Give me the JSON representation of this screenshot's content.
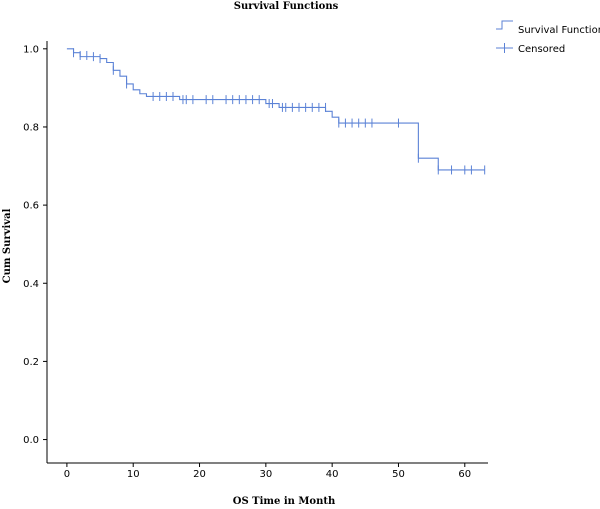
{
  "chart_data": {
    "type": "line",
    "title": "Survival Functions",
    "xlabel": "OS Time in Month",
    "ylabel": "Cum Survival",
    "xlim": [
      -3,
      63.5
    ],
    "ylim": [
      -0.06,
      1.02
    ],
    "xticks": [
      0,
      10,
      20,
      30,
      40,
      50,
      60
    ],
    "yticks": [
      0.0,
      0.2,
      0.4,
      0.6,
      0.8,
      1.0
    ],
    "xtick_labels": [
      "0",
      "10",
      "20",
      "30",
      "40",
      "50",
      "60"
    ],
    "ytick_labels": [
      "0.0",
      "0.2",
      "0.4",
      "0.6",
      "0.8",
      "1.0"
    ],
    "grid": false,
    "legend_position": "top-right",
    "line_color": "#5b82d6",
    "series": [
      {
        "name": "Survival Function",
        "kind": "step",
        "points": [
          [
            0,
            1.0
          ],
          [
            1,
            0.99
          ],
          [
            2,
            0.98
          ],
          [
            5,
            0.975
          ],
          [
            6,
            0.965
          ],
          [
            7,
            0.945
          ],
          [
            8,
            0.93
          ],
          [
            9,
            0.91
          ],
          [
            10,
            0.895
          ],
          [
            11,
            0.885
          ],
          [
            12,
            0.878
          ],
          [
            17,
            0.87
          ],
          [
            30,
            0.86
          ],
          [
            32,
            0.85
          ],
          [
            39,
            0.84
          ],
          [
            40,
            0.825
          ],
          [
            41,
            0.81
          ],
          [
            53,
            0.72
          ],
          [
            56,
            0.69
          ],
          [
            63,
            0.69
          ]
        ]
      },
      {
        "name": "Censored",
        "kind": "censor-marks",
        "points": [
          [
            1,
            0.99
          ],
          [
            2,
            0.983
          ],
          [
            3,
            0.983
          ],
          [
            4,
            0.98
          ],
          [
            5,
            0.975
          ],
          [
            7,
            0.945
          ],
          [
            9,
            0.91
          ],
          [
            13,
            0.878
          ],
          [
            14,
            0.878
          ],
          [
            15,
            0.878
          ],
          [
            16,
            0.878
          ],
          [
            17.5,
            0.87
          ],
          [
            18,
            0.87
          ],
          [
            19,
            0.87
          ],
          [
            21,
            0.87
          ],
          [
            22,
            0.87
          ],
          [
            24,
            0.87
          ],
          [
            25,
            0.87
          ],
          [
            26,
            0.87
          ],
          [
            27,
            0.87
          ],
          [
            28,
            0.87
          ],
          [
            29,
            0.87
          ],
          [
            30.5,
            0.86
          ],
          [
            31,
            0.86
          ],
          [
            32.5,
            0.85
          ],
          [
            33,
            0.85
          ],
          [
            34,
            0.85
          ],
          [
            35,
            0.85
          ],
          [
            36,
            0.85
          ],
          [
            37,
            0.85
          ],
          [
            38,
            0.85
          ],
          [
            39,
            0.85
          ],
          [
            41,
            0.81
          ],
          [
            42,
            0.81
          ],
          [
            43,
            0.81
          ],
          [
            44,
            0.81
          ],
          [
            45,
            0.81
          ],
          [
            46,
            0.81
          ],
          [
            50,
            0.81
          ],
          [
            53,
            0.72
          ],
          [
            56,
            0.69
          ],
          [
            58,
            0.69
          ],
          [
            60,
            0.69
          ],
          [
            61,
            0.69
          ],
          [
            63,
            0.69
          ]
        ]
      }
    ],
    "legend": [
      "Survival Function",
      "Censored"
    ]
  }
}
